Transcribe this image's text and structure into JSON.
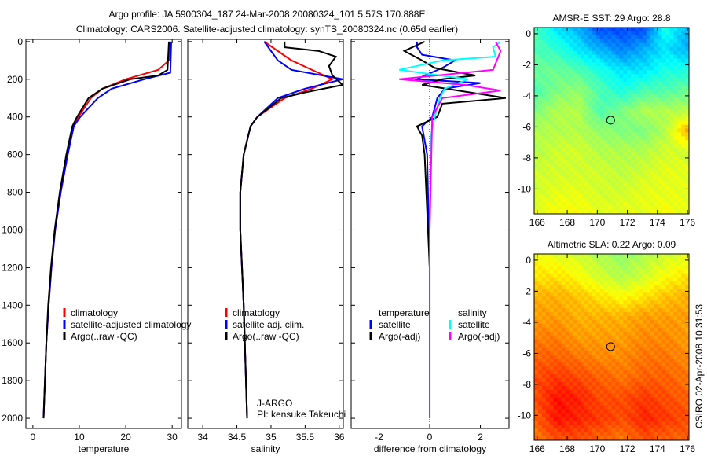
{
  "title_line1": "Argo profile: JA 5900304_187 24-Mar-2008 20080324_101 5.57S 170.888E",
  "title_line2": "Climatology: CARS2006. Satellite-adjusted climatology: synTS_20080324.nc (0.65d earlier)",
  "side_stamp": "CSIRO 02-Apr-2008 10:31:53",
  "colors": {
    "red": "#ff0000",
    "blue": "#0000ff",
    "black": "#000000",
    "cyan": "#00ffff",
    "magenta": "#ff00ff"
  },
  "chart_data": [
    {
      "type": "line",
      "id": "temp",
      "xlabel": "temperature",
      "xlim": [
        -1.5,
        32
      ],
      "ylim": [
        -12,
        2054
      ],
      "y_reversed": true,
      "xticks": [
        0,
        10,
        20,
        30
      ],
      "yticks": [
        0,
        200,
        400,
        600,
        800,
        1000,
        1200,
        1400,
        1600,
        1800,
        2000
      ],
      "legend": [
        "climatology",
        "satellite-adjusted climatology",
        "Argo(..raw -QC)"
      ],
      "series": [
        {
          "name": "climatology",
          "color": "#ff0000",
          "depth": [
            0,
            100,
            150,
            200,
            250,
            300,
            400,
            450,
            600,
            800,
            1000,
            1200,
            1400,
            1600,
            1800,
            2000
          ],
          "values": [
            29.5,
            29.3,
            27,
            20,
            15,
            12.5,
            9.8,
            8.8,
            7.5,
            6,
            4.8,
            4,
            3.4,
            2.9,
            2.6,
            2.3
          ]
        },
        {
          "name": "satellite-adjusted climatology",
          "color": "#0000ff",
          "depth": [
            0,
            165,
            200,
            250,
            300,
            400,
            450,
            600,
            800,
            1000,
            1200,
            1400,
            1600,
            1800,
            2000
          ],
          "values": [
            29.8,
            29.6,
            24,
            17,
            14,
            10.2,
            8.8,
            7.5,
            6,
            4.8,
            4,
            3.4,
            2.9,
            2.6,
            2.3
          ]
        },
        {
          "name": "Argo(..raw -QC)",
          "color": "#000000",
          "depth": [
            0,
            150,
            180,
            200,
            250,
            300,
            400,
            450,
            600,
            800,
            1000,
            1200,
            1400,
            1600,
            1800,
            2000
          ],
          "values": [
            29.3,
            29,
            27,
            21,
            15,
            12,
            9.5,
            8.5,
            7.2,
            5.8,
            4.7,
            3.9,
            3.3,
            2.9,
            2.6,
            2.3
          ]
        }
      ]
    },
    {
      "type": "line",
      "id": "sal",
      "xlabel": "salinity",
      "xlim": [
        33.78,
        36.06
      ],
      "ylim": [
        -12,
        2054
      ],
      "y_reversed": true,
      "xticks": [
        34,
        34.5,
        35,
        35.5,
        36
      ],
      "legend": [
        "climatology",
        "satellite adj. clim.",
        "Argo(..raw -QC)"
      ],
      "annotation": [
        "J-ARGO",
        "PI: kensuke Takeuchi"
      ],
      "series": [
        {
          "name": "climatology",
          "color": "#ff0000",
          "depth": [
            0,
            100,
            200,
            250,
            300,
            400,
            450,
            600,
            800,
            1000,
            1400,
            2000
          ],
          "values": [
            34.9,
            35.3,
            35.9,
            35.6,
            35.2,
            34.8,
            34.7,
            34.6,
            34.55,
            34.55,
            34.6,
            34.65
          ]
        },
        {
          "name": "satellite adj. clim.",
          "color": "#0000ff",
          "depth": [
            0,
            100,
            150,
            200,
            250,
            300,
            400,
            450,
            600,
            800,
            1000,
            1400,
            2000
          ],
          "values": [
            34.9,
            35.1,
            35.3,
            36.05,
            35.5,
            35.1,
            34.8,
            34.7,
            34.6,
            34.55,
            34.55,
            34.6,
            34.65
          ]
        },
        {
          "name": "Argo(..raw -QC)",
          "color": "#000000",
          "depth": [
            0,
            30,
            50,
            80,
            130,
            180,
            230,
            270,
            300,
            400,
            450,
            600,
            800,
            1000,
            1400,
            2000
          ],
          "values": [
            35.2,
            35.2,
            35.7,
            35.95,
            35.85,
            35.9,
            36.05,
            35.5,
            35.15,
            34.8,
            34.7,
            34.6,
            34.55,
            34.55,
            34.6,
            34.65
          ]
        }
      ]
    },
    {
      "type": "line",
      "id": "diff",
      "xlabel": "difference from climatology",
      "xlim": [
        -3.1,
        3.13
      ],
      "ylim": [
        -12,
        2054
      ],
      "y_reversed": true,
      "xticks": [
        -2,
        0,
        2
      ],
      "legend_headers": [
        "temperature",
        "salinity"
      ],
      "legend": [
        "satellite",
        "Argo(-adj)",
        "satellite",
        "Argo(-adj)"
      ],
      "series": [
        {
          "name": "temperature satellite",
          "color": "#0000ff",
          "depth": [
            0,
            30,
            70,
            100,
            140,
            180,
            200,
            220,
            250,
            300,
            400,
            450,
            600,
            900,
            1200,
            2000
          ],
          "values": [
            -0.5,
            -0.5,
            -0.3,
            1,
            0.5,
            -0.2,
            -0.5,
            2,
            0.6,
            0.3,
            0.1,
            -0.3,
            -0.1,
            -0.05,
            0,
            0
          ]
        },
        {
          "name": "temperature Argo(-adj)",
          "color": "#000000",
          "depth": [
            0,
            50,
            100,
            140,
            180,
            200,
            230,
            300,
            330,
            400,
            450,
            500,
            600,
            900,
            1200,
            2000
          ],
          "values": [
            -0.2,
            -1,
            -0.3,
            0.2,
            1.8,
            0.5,
            -0.3,
            3,
            0.5,
            0.3,
            -0.5,
            -0.3,
            -0.2,
            -0.1,
            0,
            0
          ]
        },
        {
          "name": "salinity satellite",
          "color": "#00ffff",
          "depth": [
            0,
            30,
            80,
            100,
            150,
            200,
            250,
            300,
            400,
            500,
            1000,
            2000
          ],
          "values": [
            2.8,
            2.5,
            2.6,
            0.5,
            -1.2,
            1.5,
            0.6,
            0.4,
            0.2,
            0.05,
            0,
            0
          ]
        },
        {
          "name": "salinity Argo(-adj)",
          "color": "#ff00ff",
          "depth": [
            0,
            50,
            150,
            200,
            230,
            260,
            300,
            400,
            1000,
            2000
          ],
          "values": [
            2.6,
            2.8,
            2.5,
            -1.2,
            1.4,
            2.8,
            0.5,
            0.1,
            0,
            0
          ]
        }
      ]
    },
    {
      "type": "heatmap",
      "id": "sst",
      "title": "AMSR-E SST: 29 Argo: 28.8",
      "xlim": [
        165.8,
        176.1
      ],
      "ylim": [
        -11.6,
        0.4
      ],
      "xticks": [
        166,
        168,
        170,
        172,
        174,
        176
      ],
      "yticks": [
        0,
        -2,
        -4,
        -6,
        -8,
        -10
      ],
      "marker": [
        170.888,
        -5.57
      ],
      "colormap_index_grid": [
        [
          0.45,
          0.35,
          0.3,
          0.2,
          0.2,
          0.2,
          0.4,
          0.3
        ],
        [
          0.45,
          0.42,
          0.35,
          0.3,
          0.25,
          0.3,
          0.35,
          0.3
        ],
        [
          0.48,
          0.48,
          0.45,
          0.4,
          0.35,
          0.35,
          0.4,
          0.4
        ],
        [
          0.45,
          0.5,
          0.52,
          0.45,
          0.4,
          0.45,
          0.45,
          0.48
        ],
        [
          0.5,
          0.55,
          0.55,
          0.45,
          0.5,
          0.55,
          0.55,
          0.55
        ],
        [
          0.55,
          0.55,
          0.55,
          0.52,
          0.5,
          0.5,
          0.55,
          0.7
        ],
        [
          0.55,
          0.58,
          0.58,
          0.55,
          0.55,
          0.55,
          0.58,
          0.58
        ],
        [
          0.58,
          0.58,
          0.58,
          0.58,
          0.56,
          0.58,
          0.6,
          0.6
        ],
        [
          0.58,
          0.6,
          0.6,
          0.58,
          0.58,
          0.6,
          0.6,
          0.6
        ],
        [
          0.6,
          0.62,
          0.62,
          0.6,
          0.6,
          0.6,
          0.62,
          0.6
        ]
      ]
    },
    {
      "type": "heatmap",
      "id": "sla",
      "title": "Altimetric SLA: 0.22 Argo: 0.09",
      "xlim": [
        165.8,
        176.1
      ],
      "ylim": [
        -11.6,
        0.4
      ],
      "xticks": [
        166,
        168,
        170,
        172,
        174,
        176
      ],
      "yticks": [
        0,
        -2,
        -4,
        -6,
        -8,
        -10
      ],
      "marker": [
        170.888,
        -5.57
      ],
      "colormap_index_grid": [
        [
          0.62,
          0.6,
          0.58,
          0.55,
          0.52,
          0.55,
          0.58,
          0.6
        ],
        [
          0.65,
          0.65,
          0.62,
          0.58,
          0.55,
          0.58,
          0.62,
          0.65
        ],
        [
          0.7,
          0.7,
          0.68,
          0.65,
          0.62,
          0.65,
          0.68,
          0.7
        ],
        [
          0.72,
          0.72,
          0.7,
          0.7,
          0.7,
          0.72,
          0.72,
          0.72
        ],
        [
          0.75,
          0.75,
          0.72,
          0.72,
          0.72,
          0.74,
          0.74,
          0.72
        ],
        [
          0.78,
          0.78,
          0.76,
          0.74,
          0.74,
          0.76,
          0.76,
          0.74
        ],
        [
          0.8,
          0.82,
          0.8,
          0.78,
          0.76,
          0.78,
          0.78,
          0.76
        ],
        [
          0.8,
          0.86,
          0.84,
          0.8,
          0.8,
          0.82,
          0.8,
          0.78
        ],
        [
          0.78,
          0.86,
          0.84,
          0.82,
          0.8,
          0.84,
          0.82,
          0.8
        ],
        [
          0.76,
          0.8,
          0.8,
          0.78,
          0.76,
          0.8,
          0.78,
          0.78
        ]
      ]
    }
  ]
}
